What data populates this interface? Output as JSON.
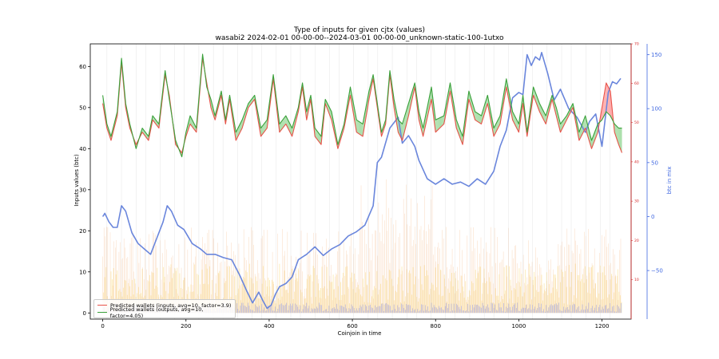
{
  "chart_data": {
    "type": "line",
    "title_line1": "Type of inputs for given cjtx (values)",
    "title_line2": "wasabi2 2024-02-01 00-00-00--2024-03-01 00-00-00_unknown-static-100-1utxo",
    "xlabel": "Coinjoin in time",
    "ylabel": "Inputs values (btc)",
    "ylabel_right": "btc in mix",
    "xlim": [
      -30,
      1270
    ],
    "ylim": [
      -1.5,
      65.5
    ],
    "ylim_right_small": [
      0,
      70
    ],
    "ylim_right_big": [
      -95,
      160
    ],
    "x_ticks": [
      0,
      200,
      400,
      600,
      800,
      1000,
      1200
    ],
    "y_ticks": [
      0,
      10,
      20,
      30,
      40,
      50,
      60
    ],
    "y_ticks_right_small": [
      10,
      20,
      30,
      40,
      50,
      60,
      70
    ],
    "y_ticks_right_big": [
      -50,
      0,
      50,
      100,
      150
    ],
    "legend_position": "lower-left",
    "colors": {
      "inputs": "#e8534a",
      "outputs": "#3aa03a",
      "btc_in_mix": "#6a86dc",
      "bars_orange": "#f5b98a",
      "bars_yellow": "#fbe6a4",
      "bars_blue": "#8a96f0",
      "fill_red": "#ff9090",
      "fill_green": "#8fd48f",
      "right_small_axis": "#d62728",
      "right_big_axis": "#4169e1"
    },
    "series": [
      {
        "name": "Predicted wallets (inputs, avg=10, factor=3.9)",
        "color": "#e8534a",
        "x": [
          0,
          10,
          20,
          35,
          45,
          55,
          65,
          80,
          95,
          110,
          120,
          135,
          150,
          160,
          175,
          190,
          200,
          210,
          225,
          240,
          250,
          260,
          270,
          285,
          295,
          305,
          320,
          335,
          350,
          365,
          380,
          395,
          410,
          425,
          440,
          455,
          470,
          480,
          490,
          500,
          510,
          525,
          535,
          550,
          565,
          580,
          595,
          610,
          625,
          640,
          650,
          660,
          670,
          680,
          690,
          700,
          710,
          720,
          735,
          750,
          760,
          770,
          790,
          800,
          820,
          835,
          850,
          865,
          880,
          895,
          910,
          925,
          940,
          955,
          970,
          985,
          1000,
          1010,
          1020,
          1035,
          1050,
          1065,
          1080,
          1090,
          1100,
          1115,
          1130,
          1145,
          1160,
          1175,
          1190,
          1200,
          1210,
          1220,
          1230,
          1240,
          1248
        ],
        "values": [
          51,
          45,
          42,
          48,
          61,
          50,
          45,
          41,
          44,
          42,
          47,
          45,
          58,
          53,
          41,
          39,
          43,
          46,
          44,
          62,
          56,
          50,
          47,
          53,
          46,
          52,
          42,
          45,
          50,
          52,
          43,
          45,
          57,
          44,
          46,
          43,
          49,
          55,
          47,
          52,
          43,
          41,
          51,
          47,
          40,
          45,
          53,
          44,
          43,
          52,
          57,
          50,
          43,
          46,
          58,
          50,
          44,
          42,
          48,
          55,
          47,
          43,
          52,
          44,
          46,
          54,
          45,
          41,
          52,
          47,
          46,
          51,
          43,
          46,
          55,
          47,
          44,
          51,
          43,
          53,
          49,
          46,
          52,
          48,
          44,
          47,
          50,
          42,
          45,
          40,
          44,
          50,
          56,
          54,
          44,
          41,
          39
        ]
      },
      {
        "name": "Predicted wallets (outputs, avg=10, factor=4.05)",
        "color": "#3aa03a",
        "x": [
          0,
          10,
          20,
          35,
          45,
          55,
          65,
          80,
          95,
          110,
          120,
          135,
          150,
          160,
          175,
          190,
          200,
          210,
          225,
          240,
          250,
          260,
          270,
          285,
          295,
          305,
          320,
          335,
          350,
          365,
          380,
          395,
          410,
          425,
          440,
          455,
          470,
          480,
          490,
          500,
          510,
          525,
          535,
          550,
          565,
          580,
          595,
          610,
          625,
          640,
          650,
          660,
          670,
          680,
          690,
          700,
          710,
          720,
          735,
          750,
          760,
          770,
          790,
          800,
          820,
          835,
          850,
          865,
          880,
          895,
          910,
          925,
          940,
          955,
          970,
          985,
          1000,
          1010,
          1020,
          1035,
          1050,
          1065,
          1080,
          1090,
          1100,
          1115,
          1130,
          1145,
          1160,
          1175,
          1190,
          1200,
          1210,
          1220,
          1230,
          1240,
          1248
        ],
        "values": [
          53,
          46,
          43,
          49,
          62,
          51,
          46,
          40,
          45,
          43,
          48,
          46,
          59,
          52,
          42,
          38,
          44,
          48,
          45,
          63,
          55,
          52,
          48,
          54,
          47,
          53,
          44,
          47,
          51,
          53,
          45,
          47,
          58,
          46,
          48,
          45,
          50,
          56,
          49,
          53,
          45,
          43,
          52,
          49,
          41,
          46,
          55,
          47,
          46,
          54,
          58,
          51,
          44,
          47,
          59,
          52,
          47,
          46,
          51,
          56,
          49,
          45,
          55,
          47,
          48,
          56,
          47,
          43,
          54,
          49,
          48,
          53,
          45,
          48,
          57,
          49,
          46,
          53,
          44,
          55,
          51,
          48,
          53,
          50,
          46,
          48,
          51,
          44,
          48,
          42,
          46,
          47,
          49,
          48,
          46,
          45,
          45
        ]
      },
      {
        "name": "btc in mix",
        "color": "#6a86dc",
        "axis": "right_big",
        "x": [
          0,
          5,
          15,
          25,
          35,
          45,
          55,
          70,
          85,
          100,
          115,
          130,
          145,
          155,
          165,
          180,
          195,
          215,
          235,
          250,
          270,
          290,
          310,
          330,
          345,
          360,
          375,
          385,
          395,
          405,
          415,
          425,
          440,
          455,
          470,
          490,
          510,
          530,
          550,
          570,
          590,
          610,
          630,
          650,
          660,
          670,
          690,
          710,
          720,
          735,
          750,
          760,
          780,
          800,
          820,
          840,
          860,
          880,
          900,
          920,
          940,
          955,
          970,
          985,
          1000,
          1010,
          1020,
          1030,
          1040,
          1050,
          1055,
          1070,
          1085,
          1100,
          1120,
          1140,
          1160,
          1170,
          1185,
          1200,
          1215,
          1225,
          1235,
          1245
        ],
        "values": [
          0,
          3,
          -5,
          -10,
          -10,
          10,
          5,
          -15,
          -25,
          -30,
          -35,
          -20,
          -5,
          10,
          5,
          -8,
          -12,
          -25,
          -30,
          -35,
          -35,
          -38,
          -40,
          -55,
          -68,
          -80,
          -70,
          -78,
          -85,
          -82,
          -72,
          -65,
          -62,
          -56,
          -40,
          -35,
          -28,
          -36,
          -30,
          -26,
          -18,
          -14,
          -8,
          10,
          50,
          55,
          82,
          92,
          68,
          75,
          65,
          52,
          35,
          30,
          35,
          30,
          32,
          28,
          35,
          30,
          42,
          65,
          80,
          110,
          115,
          113,
          150,
          140,
          148,
          145,
          152,
          132,
          108,
          118,
          100,
          92,
          78,
          88,
          95,
          65,
          115,
          125,
          123,
          128
        ]
      }
    ]
  }
}
